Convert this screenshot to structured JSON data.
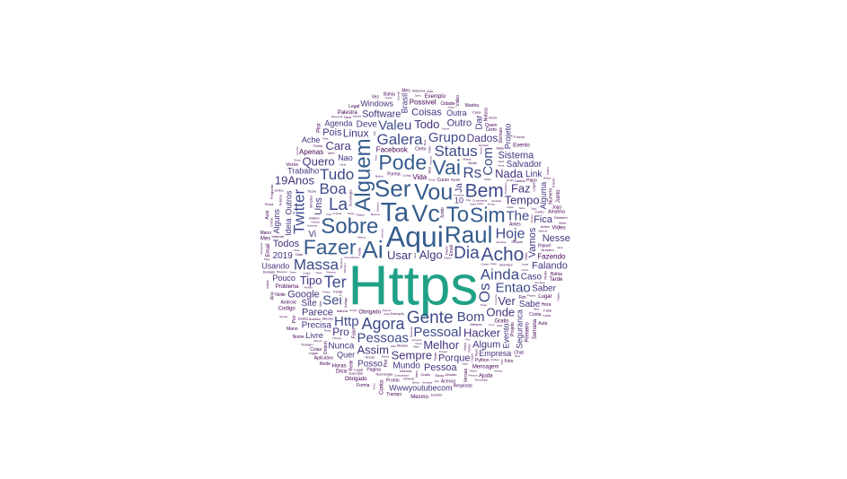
{
  "palette": {
    "largest": "#1fa187",
    "large": "#365c8d",
    "medium": "#3e4a89",
    "small": "#46327e",
    "tiny": "#440154"
  },
  "words": {
    "main": [
      {
        "text": "Https",
        "weight": 100
      },
      {
        "text": "Aqui",
        "weight": 30
      },
      {
        "text": "Ta",
        "weight": 28
      },
      {
        "text": "Vc",
        "weight": 25
      },
      {
        "text": "Ai",
        "weight": 25
      },
      {
        "text": "Ser",
        "weight": 24
      },
      {
        "text": "Raul",
        "weight": 24
      },
      {
        "text": "Vou",
        "weight": 23
      },
      {
        "text": "Sobre",
        "weight": 22
      },
      {
        "text": "To",
        "weight": 22
      },
      {
        "text": "Alguem",
        "weight": 22
      },
      {
        "text": "Pode",
        "weight": 20
      },
      {
        "text": "Sim",
        "weight": 20
      },
      {
        "text": "Fazer",
        "weight": 20
      },
      {
        "text": "Vai",
        "weight": 20
      },
      {
        "text": "Bem",
        "weight": 18
      },
      {
        "text": "Acho",
        "weight": 18
      },
      {
        "text": "Dia",
        "weight": 16
      },
      {
        "text": "La",
        "weight": 16
      },
      {
        "text": "Gente",
        "weight": 16
      },
      {
        "text": "Agora",
        "weight": 15
      },
      {
        "text": "Ter",
        "weight": 15
      },
      {
        "text": "Massa",
        "weight": 14
      },
      {
        "text": "Boa",
        "weight": 14
      },
      {
        "text": "Galera",
        "weight": 14
      },
      {
        "text": "Rs",
        "weight": 14
      },
      {
        "text": "Status",
        "weight": 14
      },
      {
        "text": "Ainda",
        "weight": 14
      },
      {
        "text": "Tudo",
        "weight": 14
      },
      {
        "text": "Twitter",
        "weight": 14
      },
      {
        "text": "Os",
        "weight": 14
      },
      {
        "text": "Hoje",
        "weight": 13
      },
      {
        "text": "Pessoal",
        "weight": 12
      },
      {
        "text": "Pessoas",
        "weight": 12
      },
      {
        "text": "Bom",
        "weight": 12
      },
      {
        "text": "Sei",
        "weight": 12
      },
      {
        "text": "Valeu",
        "weight": 12
      },
      {
        "text": "Http",
        "weight": 12
      },
      {
        "text": "Entao",
        "weight": 12
      },
      {
        "text": "Grupo",
        "weight": 12
      },
      {
        "text": "The",
        "weight": 12
      },
      {
        "text": "Tempo",
        "weight": 10
      },
      {
        "text": "Algo",
        "weight": 10
      },
      {
        "text": "Nada",
        "weight": 10
      },
      {
        "text": "Hacker",
        "weight": 10
      },
      {
        "text": "Tipo",
        "weight": 10
      },
      {
        "text": "Melhor",
        "weight": 10
      },
      {
        "text": "Onde",
        "weight": 10
      },
      {
        "text": "Usar",
        "weight": 10
      },
      {
        "text": "Quero",
        "weight": 10
      },
      {
        "text": "Ver",
        "weight": 10
      },
      {
        "text": "Todo",
        "weight": 10
      },
      {
        "text": "Cara",
        "weight": 10
      },
      {
        "text": "Faz",
        "weight": 10
      },
      {
        "text": "Sempre",
        "weight": 10
      },
      {
        "text": "Assim",
        "weight": 10
      },
      {
        "text": "Com",
        "weight": 12
      },
      {
        "text": "19Anos",
        "weight": 10
      },
      {
        "text": "Linux",
        "weight": 9
      },
      {
        "text": "Pro",
        "weight": 9
      },
      {
        "text": "Dados",
        "weight": 9
      },
      {
        "text": "Software",
        "weight": 8
      },
      {
        "text": "Google",
        "weight": 8
      },
      {
        "text": "Uns",
        "weight": 8
      },
      {
        "text": "Todos",
        "weight": 8
      },
      {
        "text": "Vamos",
        "weight": 8
      },
      {
        "text": "Parece",
        "weight": 8
      },
      {
        "text": "Porque",
        "weight": 8
      },
      {
        "text": "Coisas",
        "weight": 8
      },
      {
        "text": "Outro",
        "weight": 8
      },
      {
        "text": "Sistema",
        "weight": 8
      },
      {
        "text": "Pois",
        "weight": 8
      },
      {
        "text": "Nesse",
        "weight": 8
      },
      {
        "text": "Fica",
        "weight": 8
      },
      {
        "text": "Falando",
        "weight": 8
      },
      {
        "text": "Algum",
        "weight": 8
      },
      {
        "text": "Pessoa",
        "weight": 8
      },
      {
        "text": "Sabe",
        "weight": 7
      },
      {
        "text": "Deve",
        "weight": 7
      },
      {
        "text": "Caso",
        "weight": 7
      },
      {
        "text": "Link",
        "weight": 7
      },
      {
        "text": "Salvador",
        "weight": 7
      },
      {
        "text": "Mundo",
        "weight": 7
      },
      {
        "text": "Precisa",
        "weight": 7
      },
      {
        "text": "Posso",
        "weight": 7
      },
      {
        "text": "Nunca",
        "weight": 7
      },
      {
        "text": "Saber",
        "weight": 7
      },
      {
        "text": "Dar",
        "weight": 7
      },
      {
        "text": "Ja",
        "weight": 7
      },
      {
        "text": "Vi",
        "weight": 7
      },
      {
        "text": "Site",
        "weight": 7
      },
      {
        "text": "Quer",
        "weight": 6
      },
      {
        "text": "Nao",
        "weight": 6
      },
      {
        "text": "Ideia",
        "weight": 6
      },
      {
        "text": "Outra",
        "weight": 6
      },
      {
        "text": "Alguns",
        "weight": 6
      },
      {
        "text": "Windows",
        "weight": 6
      },
      {
        "text": "Outros",
        "weight": 6
      },
      {
        "text": "Pouco",
        "weight": 6
      },
      {
        "text": "Projeto",
        "weight": 6
      },
      {
        "text": "Trabalho",
        "weight": 6
      },
      {
        "text": "Evento",
        "weight": 6
      },
      {
        "text": "Seguranca",
        "weight": 6
      },
      {
        "text": "Empresa",
        "weight": 6
      },
      {
        "text": "Agenda",
        "weight": 6
      },
      {
        "text": "Wwwyoutubecom",
        "weight": 6
      },
      {
        "text": "Alguma",
        "weight": 6
      },
      {
        "text": "Usando",
        "weight": 6
      },
      {
        "text": "Vida",
        "weight": 5
      },
      {
        "text": "Facebook",
        "weight": 5
      },
      {
        "text": "Possivel",
        "weight": 5
      },
      {
        "text": "Fazendo",
        "weight": 5
      },
      {
        "text": "Apenas",
        "weight": 5
      },
      {
        "text": "Brasil",
        "weight": 6
      },
      {
        "text": "Ache",
        "weight": 6
      },
      {
        "text": "Livre",
        "weight": 6
      },
      {
        "text": "2019",
        "weight": 7
      },
      {
        "text": "10",
        "weight": 6
      }
    ],
    "filler": [
      "Tecnologia",
      "Ubuntu",
      "Problema",
      "Computador",
      "Caso",
      "Obrigado",
      "Grande",
      "Exemplo",
      "Noticia",
      "Semana",
      "Internet",
      "Festa",
      "Gratis",
      "Evento",
      "Video",
      "Pagina",
      "Codigo",
      "Email",
      "Mesmo",
      "Coisa",
      "Favor",
      "Hora",
      "Horas",
      "Ajuda",
      "Forma",
      "Parte",
      "Lugar",
      "Acesso",
      "Conta",
      "Dinheiro",
      "Foto",
      "Amigo",
      "Android",
      "Jogo",
      "Aula",
      "Curso",
      "Python",
      "Rede",
      "Servidor",
      "Dica",
      "Talvez",
      "Certo",
      "Mesma",
      "Primeiro",
      "Novo",
      "Nova",
      "Bastante",
      "Depois",
      "Antes",
      "Junto",
      "Ontem",
      "Amanha",
      "Noite",
      "Manha",
      "Tarde",
      "Casa",
      "Trampo",
      "Mano",
      "Cidade",
      "Bahia",
      "CoronaVirus",
      "Governo",
      "Livro",
      "Dados",
      "Valor",
      "Falar",
      "Quem",
      "Muito",
      "Vem",
      "Tava",
      "Vez",
      "Vezes",
      "Nome",
      "Numero",
      "Papo",
      "Tema",
      "Mensagem",
      "Chat",
      "Aplicativo",
      "Sistema",
      "Versao",
      "Painel",
      "Palestra",
      "Mais",
      "Menos",
      "Verdade",
      "Simples",
      "Unico",
      "Melhor",
      "Pior",
      "Ninguem",
      "Demais",
      "Pronto",
      "Pior",
      "Fim",
      "Inicio",
      "Meio",
      "Mes",
      "Ano",
      "Dias",
      "Pergunta",
      "Resposta",
      "Teste",
      "Pessoa",
      "Comunidade",
      "Projeto",
      "Gostei",
      "Legal",
      "Massa",
      "Show"
    ]
  }
}
